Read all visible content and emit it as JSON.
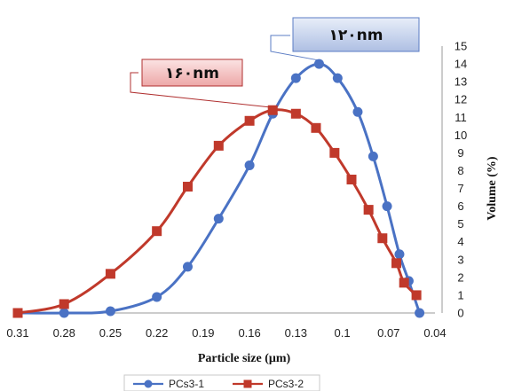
{
  "chart_data": {
    "type": "line",
    "xlabel": "Particle size (μm)",
    "ylabel": "Volume (%)",
    "x_ticks": [
      "0.31",
      "0.28",
      "0.25",
      "0.22",
      "0.19",
      "0.16",
      "0.13",
      "0.1",
      "0.07",
      "0.04"
    ],
    "y_ticks": [
      "0",
      "1",
      "2",
      "3",
      "4",
      "5",
      "6",
      "7",
      "8",
      "9",
      "10",
      "11",
      "12",
      "13",
      "14",
      "15"
    ],
    "xlim": [
      0.31,
      0.04
    ],
    "ylim": [
      0,
      15
    ],
    "x_reversed": true,
    "y_axis_position": "right",
    "grid": false,
    "legend_position": "bottom",
    "series": [
      {
        "name": "PCs3-1",
        "color": "#4a72c4",
        "marker": "circle",
        "points": [
          [
            0.31,
            0
          ],
          [
            0.28,
            0
          ],
          [
            0.25,
            0.1
          ],
          [
            0.22,
            0.9
          ],
          [
            0.2,
            2.6
          ],
          [
            0.18,
            5.3
          ],
          [
            0.16,
            8.3
          ],
          [
            0.145,
            11.2
          ],
          [
            0.13,
            13.2
          ],
          [
            0.115,
            14.0
          ],
          [
            0.103,
            13.2
          ],
          [
            0.09,
            11.3
          ],
          [
            0.08,
            8.8
          ],
          [
            0.071,
            6.0
          ],
          [
            0.063,
            3.3
          ],
          [
            0.057,
            1.8
          ],
          [
            0.05,
            0
          ]
        ]
      },
      {
        "name": "PCs3-2",
        "color": "#c0392b",
        "marker": "square",
        "points": [
          [
            0.31,
            0
          ],
          [
            0.28,
            0.5
          ],
          [
            0.25,
            2.2
          ],
          [
            0.22,
            4.6
          ],
          [
            0.2,
            7.1
          ],
          [
            0.18,
            9.4
          ],
          [
            0.16,
            10.8
          ],
          [
            0.145,
            11.4
          ],
          [
            0.13,
            11.2
          ],
          [
            0.117,
            10.4
          ],
          [
            0.105,
            9.0
          ],
          [
            0.094,
            7.5
          ],
          [
            0.083,
            5.8
          ],
          [
            0.074,
            4.2
          ],
          [
            0.065,
            2.8
          ],
          [
            0.06,
            1.7
          ],
          [
            0.052,
            1.0
          ]
        ]
      }
    ],
    "annotations": [
      {
        "text": "۱۲۰nm",
        "series": "PCs3-1",
        "box_color": "#c9d7ee",
        "border_color": "#5b7cc4"
      },
      {
        "text": "۱۶۰nm",
        "series": "PCs3-2",
        "box_color": "#f3c8c8",
        "border_color": "#b03030"
      }
    ]
  }
}
